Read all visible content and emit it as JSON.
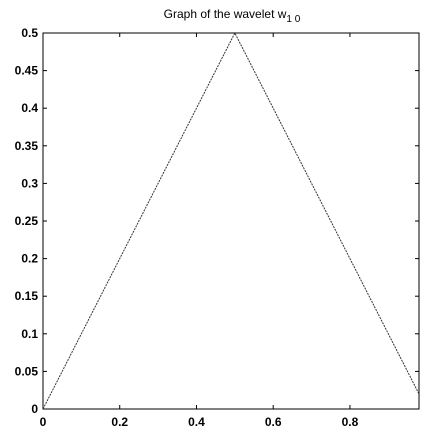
{
  "chart_data": {
    "type": "line",
    "title": {
      "prefix": "Graph of the wavelet w",
      "subscript": "1 0"
    },
    "xlabel": "",
    "ylabel": "",
    "xlim": [
      0,
      0.98
    ],
    "ylim": [
      0,
      0.5
    ],
    "x_ticks": [
      0,
      0.2,
      0.4,
      0.6,
      0.8
    ],
    "x_tick_labels": [
      "0",
      "0.2",
      "0.4",
      "0.6",
      "0.8"
    ],
    "y_ticks": [
      0,
      0.05,
      0.1,
      0.15,
      0.2,
      0.25,
      0.3,
      0.35,
      0.4,
      0.45,
      0.5
    ],
    "y_tick_labels": [
      "0",
      "0.05",
      "0.1",
      "0.15",
      "0.2",
      "0.25",
      "0.3",
      "0.35",
      "0.4",
      "0.45",
      "0.5"
    ],
    "grid": false,
    "series": [
      {
        "x": [
          0,
          0.5,
          0.98
        ],
        "y": [
          0,
          0.5,
          0.02
        ]
      }
    ],
    "line_color": "#333333",
    "axis_color": "#000000"
  }
}
